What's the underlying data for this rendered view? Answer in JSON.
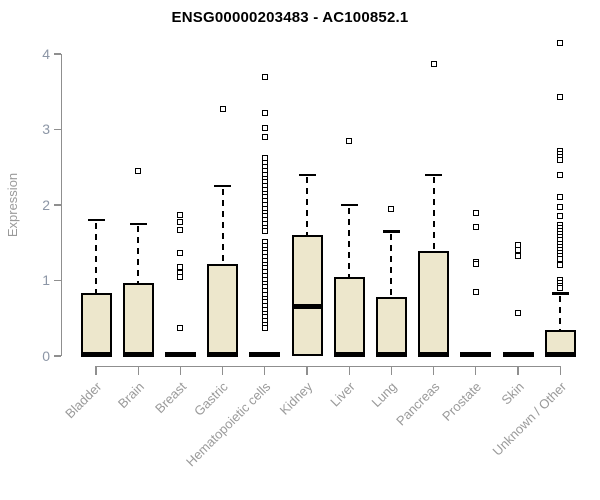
{
  "chart_data": {
    "type": "box",
    "title": "ENSG00000203483 - AC100852.1",
    "ylabel": "Expression",
    "xlabel": "",
    "ylim": [
      0,
      4
    ],
    "yticks": [
      0,
      1,
      2,
      3,
      4
    ],
    "grid": false,
    "legend": null,
    "categories": [
      "Bladder",
      "Brain",
      "Breast",
      "Gastric",
      "Hematopoietic cells",
      "Kidney",
      "Liver",
      "Lung",
      "Pancreas",
      "Prostate",
      "Skin",
      "Unknown / Other"
    ],
    "boxes": [
      {
        "category": "Bladder",
        "q1": 0,
        "median": 0.02,
        "q3": 0.83,
        "whisker_low": 0,
        "whisker_high": 1.8,
        "outliers": []
      },
      {
        "category": "Brain",
        "q1": 0,
        "median": 0.02,
        "q3": 0.97,
        "whisker_low": 0,
        "whisker_high": 1.75,
        "outliers": [
          2.45
        ]
      },
      {
        "category": "Breast",
        "q1": 0,
        "median": 0.02,
        "q3": 0,
        "whisker_low": 0,
        "whisker_high": 0,
        "outliers": [
          1.87,
          1.77,
          1.67,
          1.36,
          1.18,
          1.1,
          1.05,
          0.37
        ]
      },
      {
        "category": "Gastric",
        "q1": 0,
        "median": 0.02,
        "q3": 1.22,
        "whisker_low": 0,
        "whisker_high": 2.25,
        "outliers": [
          3.27
        ]
      },
      {
        "category": "Hematopoietic cells",
        "q1": 0,
        "median": 0.02,
        "q3": 0,
        "whisker_low": 0,
        "whisker_high": 0,
        "outliers": [
          3.7,
          3.22,
          3.02,
          2.9,
          2.62,
          2.56,
          2.5,
          2.45,
          2.4,
          2.35,
          2.3,
          2.25,
          2.2,
          2.15,
          2.1,
          2.05,
          2.0,
          1.95,
          1.9,
          1.85,
          1.8,
          1.75,
          1.7,
          1.65,
          1.51,
          1.46,
          1.41,
          1.36,
          1.31,
          1.26,
          1.21,
          1.16,
          1.11,
          1.06,
          1.01,
          0.96,
          0.91,
          0.86,
          0.81,
          0.76,
          0.71,
          0.66,
          0.61,
          0.56,
          0.51,
          0.46,
          0.41,
          0.37
        ]
      },
      {
        "category": "Kidney",
        "q1": 0,
        "median": 0.65,
        "q3": 1.6,
        "whisker_low": 0,
        "whisker_high": 2.4,
        "outliers": []
      },
      {
        "category": "Liver",
        "q1": 0,
        "median": 0.02,
        "q3": 1.05,
        "whisker_low": 0,
        "whisker_high": 2.0,
        "outliers": [
          2.85
        ]
      },
      {
        "category": "Lung",
        "q1": 0,
        "median": 0.02,
        "q3": 0.78,
        "whisker_low": 0,
        "whisker_high": 1.65,
        "outliers": [
          1.95
        ]
      },
      {
        "category": "Pancreas",
        "q1": 0,
        "median": 0.02,
        "q3": 1.39,
        "whisker_low": 0,
        "whisker_high": 2.4,
        "outliers": [
          3.87
        ]
      },
      {
        "category": "Prostate",
        "q1": 0,
        "median": 0.02,
        "q3": 0,
        "whisker_low": 0,
        "whisker_high": 0,
        "outliers": [
          1.89,
          1.71,
          1.25,
          1.22,
          0.85
        ]
      },
      {
        "category": "Skin",
        "q1": 0,
        "median": 0.02,
        "q3": 0,
        "whisker_low": 0,
        "whisker_high": 0,
        "outliers": [
          1.47,
          1.4,
          1.32,
          0.57
        ]
      },
      {
        "category": "Unknown / Other",
        "q1": 0,
        "median": 0.02,
        "q3": 0.35,
        "whisker_low": 0,
        "whisker_high": 0.83,
        "outliers": [
          4.15,
          3.43,
          2.72,
          2.68,
          2.64,
          2.6,
          2.4,
          2.11,
          1.97,
          1.85,
          1.73,
          1.69,
          1.65,
          1.61,
          1.57,
          1.53,
          1.49,
          1.45,
          1.41,
          1.37,
          1.33,
          1.29,
          1.21,
          1.01,
          0.97,
          0.93,
          0.9
        ]
      }
    ],
    "colors": {
      "box_fill": "#ede7cc",
      "box_stroke": "#000000",
      "axis": "#8f8f8f",
      "tick_label": "#8c96a6",
      "category_label": "#9a9a9a",
      "title": "#000000"
    }
  }
}
